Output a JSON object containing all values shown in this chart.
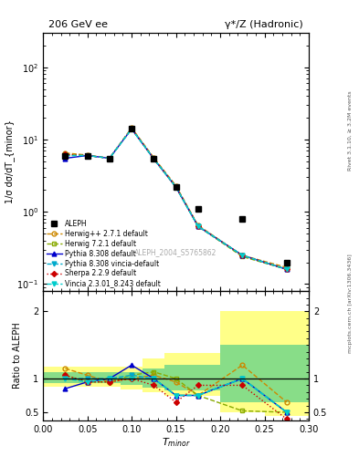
{
  "title_left": "206 GeV ee",
  "title_right": "γ*/Z (Hadronic)",
  "xlabel": "T_{minor}",
  "ylabel_main": "1/σ dσ/dT_{minor}",
  "ylabel_ratio": "Ratio to ALEPH",
  "right_label_top": "Rivet 3.1.10, ≥ 3.2M events",
  "right_label_bot": "mcplots.cern.ch [arXiv:1306.3436]",
  "watermark": "ALEPH_2004_S5765862",
  "x_data": [
    0.025,
    0.05,
    0.075,
    0.1,
    0.125,
    0.15,
    0.175,
    0.225,
    0.275
  ],
  "aleph_y": [
    6.0,
    6.0,
    5.5,
    14.0,
    5.5,
    2.2,
    1.1,
    0.8,
    0.2
  ],
  "herwig271_y": [
    6.5,
    6.1,
    5.5,
    14.5,
    5.6,
    2.3,
    0.65,
    0.25,
    0.17
  ],
  "herwig721_y": [
    6.2,
    6.0,
    5.5,
    14.2,
    5.4,
    2.2,
    0.63,
    0.24,
    0.16
  ],
  "pythia308_y": [
    5.5,
    6.0,
    5.5,
    14.0,
    5.4,
    2.2,
    0.63,
    0.25,
    0.16
  ],
  "pythia308v_y": [
    6.0,
    6.0,
    5.5,
    14.0,
    5.4,
    2.2,
    0.63,
    0.25,
    0.16
  ],
  "sherpa229_y": [
    6.2,
    6.0,
    5.5,
    14.2,
    5.4,
    2.2,
    0.63,
    0.25,
    0.16
  ],
  "vincia_y": [
    6.0,
    6.0,
    5.5,
    14.0,
    5.4,
    2.2,
    0.63,
    0.25,
    0.16
  ],
  "ratio_herwig271": [
    1.15,
    1.05,
    0.95,
    1.0,
    1.05,
    0.95,
    0.75,
    1.2,
    0.65
  ],
  "ratio_herwig721": [
    1.05,
    0.95,
    0.95,
    1.05,
    1.1,
    1.0,
    0.75,
    0.52,
    0.5
  ],
  "ratio_pythia308": [
    0.85,
    0.95,
    1.0,
    1.2,
    1.0,
    0.75,
    0.75,
    1.0,
    0.5
  ],
  "ratio_pythia308v": [
    1.0,
    1.0,
    1.0,
    1.05,
    1.0,
    0.75,
    0.75,
    1.0,
    0.5
  ],
  "ratio_sherpa229": [
    1.05,
    0.95,
    0.95,
    1.0,
    0.9,
    0.65,
    0.9,
    0.9,
    0.4
  ],
  "ratio_vincia": [
    1.0,
    0.95,
    1.0,
    1.0,
    1.0,
    0.75,
    0.75,
    1.0,
    0.5
  ],
  "xband_edges": [
    0.0,
    0.0375,
    0.0625,
    0.0875,
    0.1125,
    0.1375,
    0.1625,
    0.2,
    0.25,
    0.3
  ],
  "yband_yellow_lo": [
    0.88,
    0.88,
    0.88,
    0.84,
    0.8,
    0.74,
    0.74,
    0.5,
    0.45,
    0.45
  ],
  "yband_yellow_hi": [
    1.18,
    1.18,
    1.18,
    1.18,
    1.3,
    1.38,
    1.38,
    2.0,
    2.0,
    2.0
  ],
  "yband_green_lo": [
    0.93,
    0.93,
    0.93,
    0.9,
    0.87,
    0.82,
    0.82,
    0.65,
    0.65,
    0.65
  ],
  "yband_green_hi": [
    1.1,
    1.1,
    1.1,
    1.1,
    1.15,
    1.2,
    1.2,
    1.5,
    1.5,
    1.5
  ],
  "color_aleph": "#000000",
  "color_herwig271": "#cc8800",
  "color_herwig721": "#88aa00",
  "color_pythia308": "#0000cc",
  "color_pythia308v": "#00aacc",
  "color_sherpa229": "#cc0000",
  "color_vincia": "#00cccc",
  "color_yellow": "#ffff88",
  "color_green": "#88dd88",
  "ylim_main": [
    0.08,
    300
  ],
  "ylim_ratio": [
    0.38,
    2.3
  ],
  "xlim": [
    0.0,
    0.3
  ]
}
